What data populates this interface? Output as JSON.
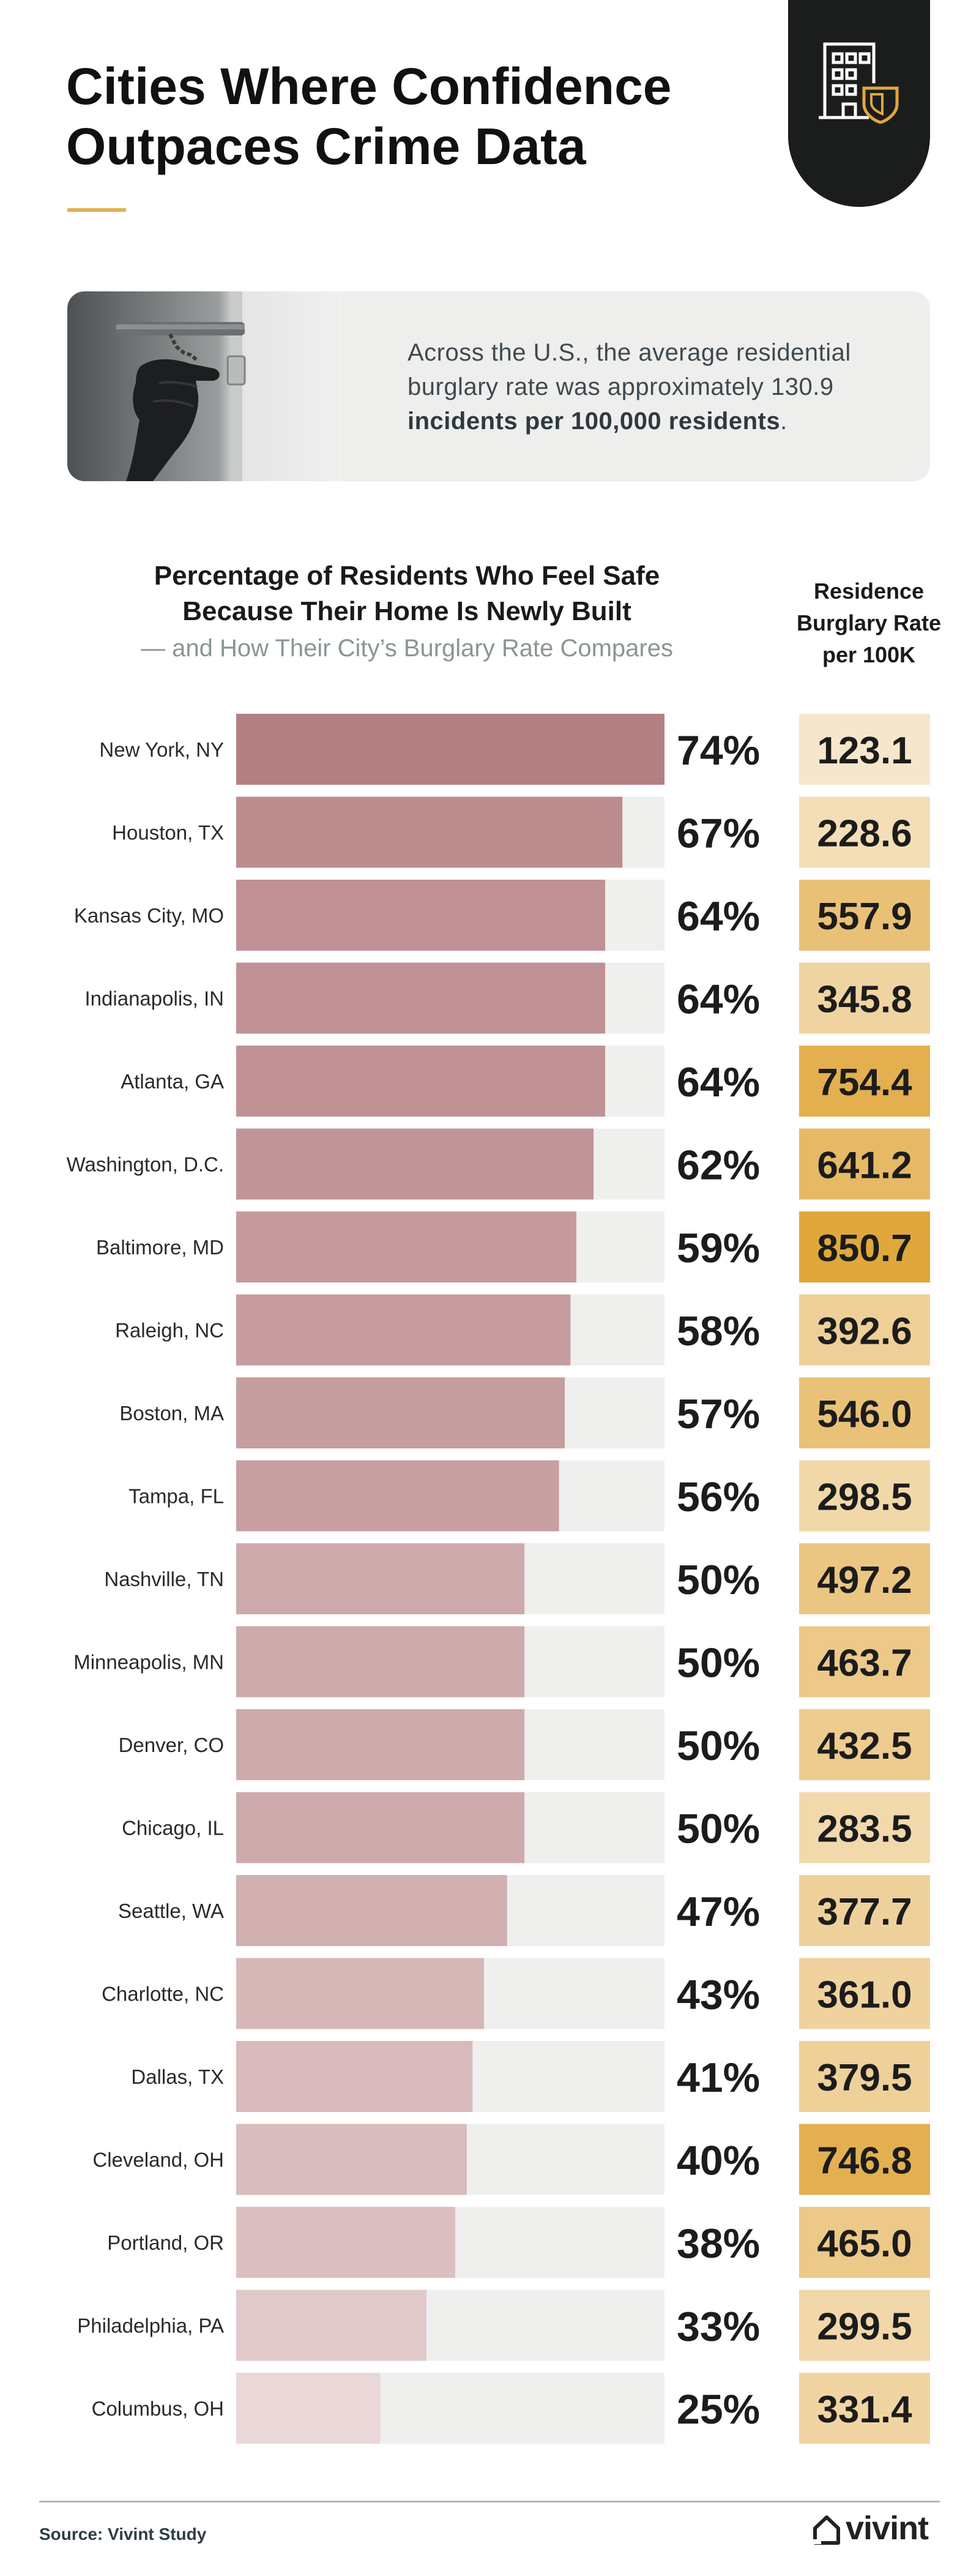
{
  "header": {
    "title": "Cities Where Confidence Outpaces Crime Data",
    "badge_icon": "building-shield-icon"
  },
  "stat_card": {
    "photo_icon": "gloved-hand-door-chain-photo",
    "text_plain": "Across the U.S., the average residential burglary rate was approximately 130.9",
    "text_bold": "incidents per 100,000 residents",
    "text_end": "."
  },
  "chart_data": {
    "type": "bar",
    "title": "Percentage of Residents Who Feel Safe Because Their Home Is Newly Built",
    "subtitle": "— and How Their City’s Burglary Rate Compares",
    "rate_column_title": "Residence Burglary Rate per 100K",
    "xlim": [
      0,
      100
    ],
    "categories": [
      "New York, NY",
      "Houston, TX",
      "Kansas City, MO",
      "Indianapolis, IN",
      "Atlanta, GA",
      "Washington, D.C.",
      "Baltimore, MD",
      "Raleigh, NC",
      "Boston, MA",
      "Tampa, FL",
      "Nashville, TN",
      "Minneapolis, MN",
      "Denver, CO",
      "Chicago, IL",
      "Seattle, WA",
      "Charlotte, NC",
      "Dallas, TX",
      "Cleveland, OH",
      "Portland, OR",
      "Philadelphia, PA",
      "Columbus, OH"
    ],
    "series": [
      {
        "values": [
          74,
          67,
          64,
          64,
          64,
          62,
          59,
          58,
          57,
          56,
          50,
          50,
          50,
          50,
          47,
          43,
          41,
          40,
          38,
          33,
          25
        ]
      },
      {
        "values": [
          "123.1",
          "228.6",
          "557.9",
          "345.8",
          "754.4",
          "641.2",
          "850.7",
          "392.6",
          "546.0",
          "298.5",
          "497.2",
          "463.7",
          "432.5",
          "283.5",
          "377.7",
          "361.0",
          "379.5",
          "746.8",
          "465.0",
          "299.5",
          "331.4"
        ]
      }
    ],
    "colors": {
      "bar_dark": "#b47f82",
      "bar_light": "#ead7d8",
      "track": "#efefee",
      "rate_low": "#f6e7cc",
      "rate_high": "#e0a73c"
    }
  },
  "footer": {
    "source_label": "Source:",
    "source_value": "Vivint Study",
    "logo_text": "vivint",
    "logo_icon": "vivint-house-icon"
  }
}
